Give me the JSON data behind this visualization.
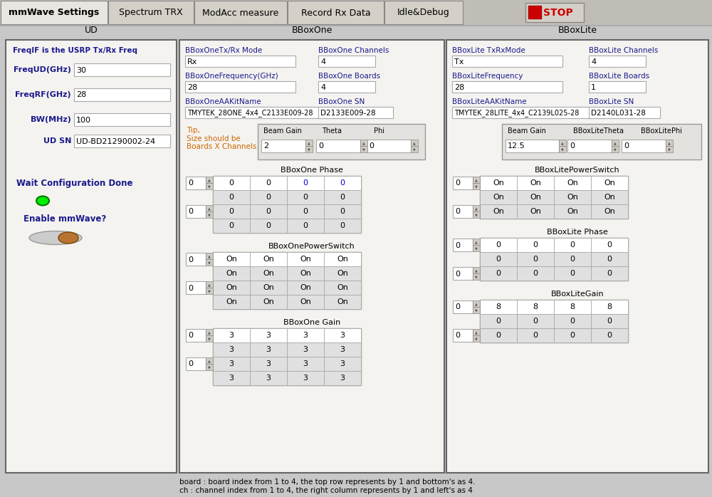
{
  "bg_color": "#c8c8c8",
  "tab_bg": "#d4d0c8",
  "tab_labels": [
    "mmWave Settings",
    "Spectrum TRX",
    "ModAcc measure",
    "Record Rx Data",
    "Idle&Debug"
  ],
  "stop_btn": "STOP",
  "ud_label": "UD",
  "ud_fields": [
    {
      "label": "FreqIF is the USRP Tx/Rx Freq",
      "value": ""
    },
    {
      "label": "FreqUD(GHz)",
      "value": "30"
    },
    {
      "label": "FreqRF(GHz)",
      "value": "28"
    },
    {
      "label": "BW(MHz)",
      "value": "100"
    },
    {
      "label": "UD SN",
      "value": "UD-BD21290002-24"
    }
  ],
  "wait_config_label": "Wait Configuration Done",
  "enable_mmwave_label": "Enable mmWave?",
  "bboxone_label": "BBoxOne",
  "bboxone_tx_mode_label": "BBoxOneTx/Rx Mode",
  "bboxone_tx_mode_val": "Rx",
  "bboxone_freq_label": "BBoxOneFrequency(GHz)",
  "bboxone_freq_val": "28",
  "bboxone_kit_label": "BBoxOneAAKitName",
  "bboxone_kit_val": "TMYTEK_28ONE_4x4_C2133E009-28",
  "bboxone_ch_label": "BBoxOne Channels",
  "bboxone_ch_val": "4",
  "bboxone_boards_label": "BBoxOne Boards",
  "bboxone_boards_val": "4",
  "bboxone_sn_label": "BBoxOne SN",
  "bboxone_sn_val": "D2133E009-28",
  "beam_gain_label": "Beam Gain",
  "theta_label": "Theta",
  "phi_label": "Phi",
  "beam_gain_val": "2",
  "theta_val": "0",
  "phi_val": "0",
  "tip_text": "Tip,\nSize should be\nBoards X Channels",
  "bboxone_phase_label": "BBoxOne Phase",
  "bboxone_phase_rows": [
    [
      0,
      0,
      0,
      0
    ],
    [
      0,
      0,
      0,
      0
    ],
    [
      0,
      0,
      0,
      0
    ],
    [
      0,
      0,
      0,
      0
    ]
  ],
  "bboxone_ps_label": "BBoxOnePowerSwitch",
  "bboxone_ps_rows": [
    [
      "On",
      "On",
      "On",
      "On"
    ],
    [
      "On",
      "On",
      "On",
      "On"
    ],
    [
      "On",
      "On",
      "On",
      "On"
    ],
    [
      "On",
      "On",
      "On",
      "On"
    ]
  ],
  "bboxone_gain_label": "BBoxOne Gain",
  "bboxone_gain_rows": [
    [
      3,
      3,
      3,
      3
    ],
    [
      3,
      3,
      3,
      3
    ],
    [
      3,
      3,
      3,
      3
    ],
    [
      3,
      3,
      3,
      3
    ]
  ],
  "bboxlite_label": "BBoxLite",
  "bboxlite_trx_label": "BBoxLite TxRxMode",
  "bboxlite_trx_val": "Tx",
  "bboxlite_freq_label": "BBoxLiteFrequency",
  "bboxlite_freq_val": "28",
  "bboxlite_kit_label": "BBoxLiteAAKitName",
  "bboxlite_kit_val": "TMYTEK_28LITE_4x4_C2139L025-28",
  "bboxlite_ch_label": "BBoxLite Channels",
  "bboxlite_ch_val": "4",
  "bboxlite_boards_label": "BBoxLite Boards",
  "bboxlite_boards_val": "1",
  "bboxlite_sn_label": "BBoxLite SN",
  "bboxlite_sn_val": "D2140L031-28",
  "bboxlite_beam_gain": "12.5",
  "bboxlite_theta_label": "BBoxLiteTheta",
  "bboxlite_phi_label": "BBoxLitePhi",
  "bboxlite_theta_val": "0",
  "bboxlite_phi_val": "0",
  "bboxlite_ps_label": "BBoxLitePowerSwitch",
  "bboxlite_ps_rows": [
    [
      "On",
      "On",
      "On",
      "On"
    ],
    [
      "On",
      "On",
      "On",
      "On"
    ],
    [
      "On",
      "On",
      "On",
      "On"
    ]
  ],
  "bboxlite_phase_label": "BBoxLite Phase",
  "bboxlite_phase_rows": [
    [
      0,
      0,
      0,
      0
    ],
    [
      0,
      0,
      0,
      0
    ],
    [
      0,
      0,
      0,
      0
    ]
  ],
  "bboxlite_gain_label": "BBoxLiteGain",
  "bboxlite_gain_rows": [
    [
      8,
      8,
      8,
      8
    ],
    [
      0,
      0,
      0,
      0
    ],
    [
      0,
      0,
      0,
      0
    ]
  ],
  "footer_text": "board : board index from 1 to 4, the top row represents by 1 and bottom's as 4.\nch : channel index from 1 to 4, the right column represents by 1 and left's as 4",
  "label_color": "#1a1a8c",
  "tip_color": "#cc6600",
  "cell_text_blue": "#0000cc",
  "panel_face": "#f5f3f0",
  "white": "#ffffff",
  "light_grey": "#e0e0e0",
  "mid_grey": "#c8c8c8",
  "input_bg": "#ffffff"
}
